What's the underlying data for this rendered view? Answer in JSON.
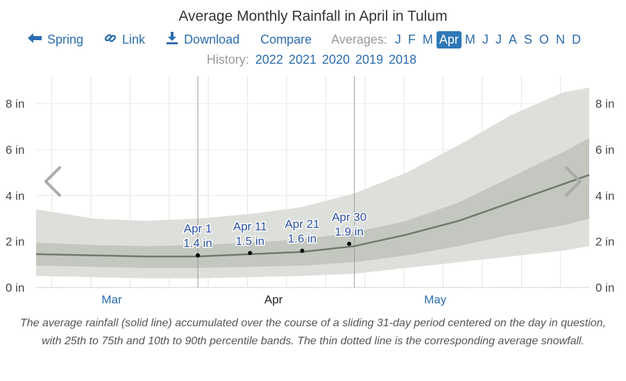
{
  "title": "Average Monthly Rainfall in April in Tulum",
  "nav": {
    "spring_label": "Spring",
    "link_label": "Link",
    "download_label": "Download",
    "compare_label": "Compare",
    "averages_label": "Averages:",
    "months": [
      "J",
      "F",
      "M",
      "Apr",
      "M",
      "J",
      "J",
      "A",
      "S",
      "O",
      "N",
      "D"
    ],
    "active_month_index": 3
  },
  "history": {
    "label": "History:",
    "years": [
      "2022",
      "2021",
      "2020",
      "2019",
      "2018"
    ]
  },
  "colors": {
    "band_outer": "#dde0da",
    "band_inner": "#c3c7bf",
    "line": "#6e7a6a",
    "link": "#2b6cb0",
    "label": "#2b4fa3"
  },
  "chart_data": {
    "type": "area",
    "ylabel_unit": "in",
    "ylim": [
      0,
      9.5
    ],
    "yticks": [
      "0 in",
      "2 in",
      "4 in",
      "6 in",
      "8 in"
    ],
    "ytick_values": [
      0,
      2,
      4,
      6,
      8
    ],
    "x_month_labels": [
      "Mar",
      "Apr",
      "May"
    ],
    "x_domain_days": [
      -31,
      75
    ],
    "series": {
      "x_days": [
        -31,
        -20,
        -10,
        0,
        10,
        20,
        30,
        40,
        50,
        60,
        70,
        75
      ],
      "median": [
        1.45,
        1.4,
        1.35,
        1.35,
        1.45,
        1.55,
        1.8,
        2.3,
        2.9,
        3.7,
        4.5,
        4.9
      ],
      "p25": [
        0.95,
        0.9,
        0.85,
        0.85,
        0.9,
        0.95,
        1.1,
        1.4,
        1.8,
        2.3,
        2.7,
        3.0
      ],
      "p75": [
        1.95,
        1.85,
        1.8,
        1.85,
        1.95,
        2.1,
        2.4,
        2.9,
        3.7,
        4.8,
        5.9,
        6.5
      ],
      "p10": [
        0.5,
        0.45,
        0.4,
        0.4,
        0.45,
        0.5,
        0.6,
        0.85,
        1.1,
        1.35,
        1.6,
        1.8
      ],
      "p90": [
        3.4,
        3.0,
        2.9,
        3.0,
        3.2,
        3.5,
        4.1,
        5.0,
        6.2,
        7.5,
        8.5,
        8.7
      ]
    },
    "annotations": [
      {
        "date": "Apr 1",
        "value": "1.4 in",
        "day": 0,
        "y": 1.4
      },
      {
        "date": "Apr 11",
        "value": "1.5 in",
        "day": 10,
        "y": 1.5
      },
      {
        "date": "Apr 21",
        "value": "1.6 in",
        "day": 20,
        "y": 1.6
      },
      {
        "date": "Apr 30",
        "value": "1.9 in",
        "day": 29,
        "y": 1.9
      }
    ],
    "caption": "The average rainfall (solid line) accumulated over the course of a sliding 31-day period centered on the day in question, with 25th to 75th and 10th to 90th percentile bands. The thin dotted line is the corresponding average snowfall."
  }
}
